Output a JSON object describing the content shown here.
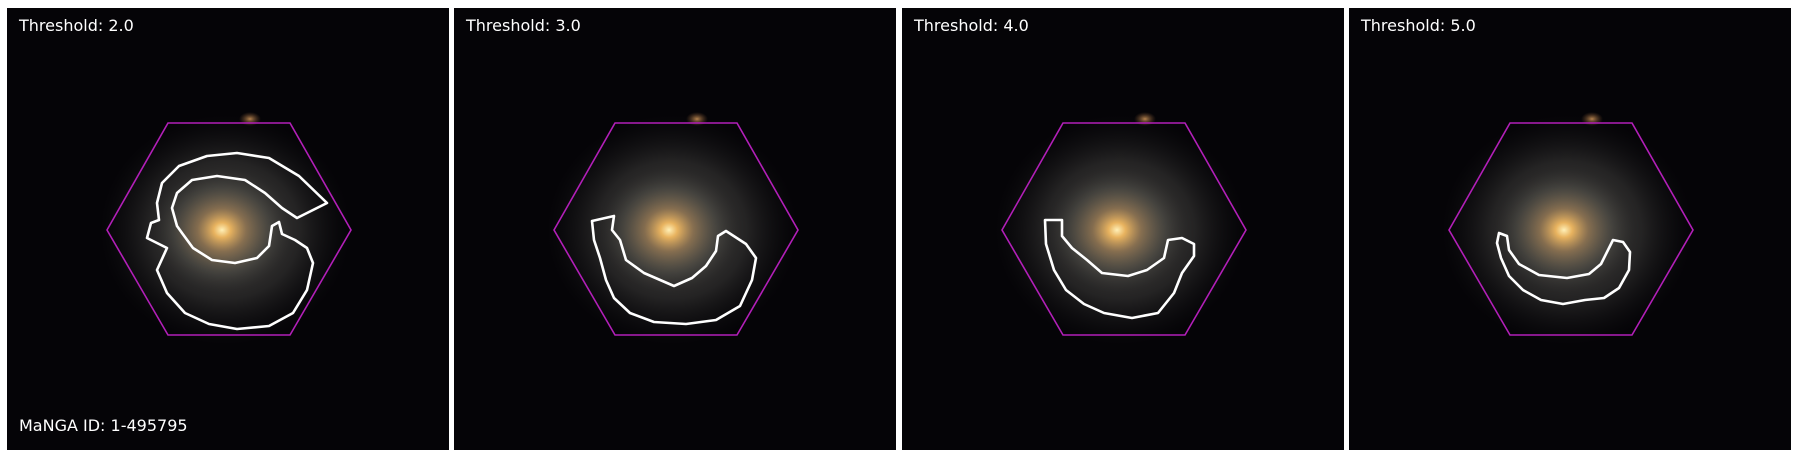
{
  "figure": {
    "manga_id_label": "MaNGA ID: 1-495795",
    "panels": [
      {
        "label": "Threshold: 2.0"
      },
      {
        "label": "Threshold: 3.0"
      },
      {
        "label": "Threshold: 4.0"
      },
      {
        "label": "Threshold: 5.0"
      }
    ]
  },
  "colors": {
    "background": "#050407",
    "hexagon_outline": "#b21fb8",
    "contour": "#ffffff",
    "galaxy_core": "#f3c873",
    "galaxy_disk": "#8f8a7c",
    "companion_source": "#b57a45"
  }
}
